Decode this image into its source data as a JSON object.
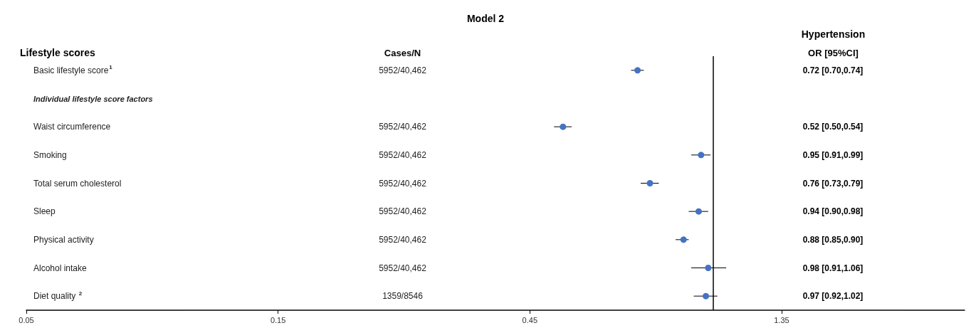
{
  "chart_data": {
    "type": "scatter",
    "orientation": "horizontal",
    "title": "Model 2",
    "ylabel": "Lifestyle scores",
    "y2label": "OR [95%CI]",
    "annotations": [
      "Cases/N",
      "Hypertension",
      "5952/40,462",
      "5952/40,462",
      "5952/40,462",
      "5952/40,462",
      "5952/40,462",
      "5952/40,462",
      "5952/40,462",
      "1359/8546"
    ],
    "categories": [
      "Basic lifestyle score$^{1}$",
      "Individual lifestyle score factors",
      "Waist circumference",
      "Smoking",
      "Total serum cholesterol",
      "Sleep",
      "Physical activity",
      "Alcohol intake",
      "Diet quality $^{2}$"
    ],
    "y2_categories": [
      "0.72 [0.70,0.74]",
      null,
      "0.52 [0.50,0.54]",
      "0.95 [0.91,0.99]",
      "0.76 [0.73,0.79]",
      "0.94 [0.90,0.98]",
      "0.88 [0.85,0.90]",
      "0.98 [0.91,1.06]",
      "0.97 [0.92,1.02]"
    ],
    "values": [
      0.72,
      null,
      0.52,
      0.95,
      0.76,
      0.94,
      0.88,
      0.98,
      0.97
    ],
    "errors": [
      [
        0.7,
        0.74
      ],
      null,
      [
        0.5,
        0.54
      ],
      [
        0.91,
        0.99
      ],
      [
        0.73,
        0.79
      ],
      [
        0.9,
        0.98
      ],
      [
        0.85,
        0.9
      ],
      [
        0.91,
        1.06
      ],
      [
        0.92,
        1.02
      ]
    ],
    "color": "#4472c4",
    "marker": "circle",
    "log": "x",
    "xlim": [
      0.05,
      3.0
    ],
    "xticks": [
      0.05,
      0.15,
      0.45,
      1.35
    ],
    "ref_lines": [
      {
        "axis": "x",
        "value": 1,
        "color": "#000000",
        "line_style": "solid"
      }
    ],
    "grid": false,
    "legend": false
  }
}
